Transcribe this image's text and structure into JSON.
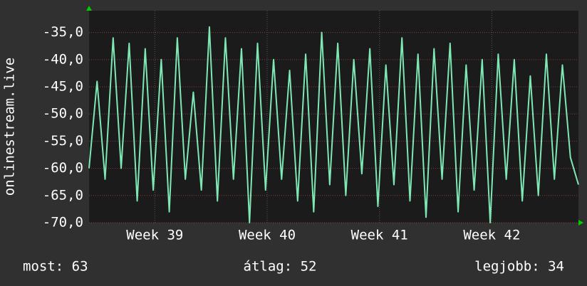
{
  "chart_data": {
    "type": "line",
    "ylabel": "onlinestream.live",
    "x": [
      0,
      0.5,
      1,
      1.5,
      2,
      2.5,
      3,
      3.5,
      4,
      4.5,
      5,
      5.5,
      6,
      6.5,
      7,
      7.5,
      8,
      8.5,
      9,
      9.5,
      10,
      10.5,
      11,
      11.5,
      12,
      12.5,
      13,
      13.5,
      14,
      14.5,
      15,
      15.5,
      16,
      16.5,
      17,
      17.5,
      18,
      18.5,
      19,
      19.5,
      20,
      20.5,
      21,
      21.5,
      22,
      22.5,
      23,
      23.5,
      24,
      24.5,
      25,
      25.5,
      26,
      26.5,
      27,
      27.5,
      28,
      28.5,
      29,
      29.5,
      30,
      30.5
    ],
    "series": [
      {
        "name": "onlinestream.live",
        "color": "#7ee8b4",
        "values": [
          -60,
          -44,
          -62,
          -36,
          -60,
          -37,
          -66,
          -38,
          -64,
          -40,
          -68,
          -36,
          -62,
          -46,
          -64,
          -34,
          -66,
          -36,
          -62,
          -38,
          -70,
          -37,
          -64,
          -40,
          -62,
          -42,
          -66,
          -39,
          -68,
          -35,
          -63,
          -37,
          -65,
          -40,
          -61,
          -38,
          -67,
          -41,
          -63,
          -36,
          -66,
          -39,
          -69,
          -38,
          -62,
          -37,
          -68,
          -41,
          -64,
          -40,
          -70,
          -39,
          -62,
          -40,
          -66,
          -43,
          -65,
          -39,
          -62,
          -41,
          -58,
          -63
        ]
      }
    ],
    "xlim": [
      0,
      30.5
    ],
    "xticks": [
      {
        "value": 4.1,
        "label": "Week 39"
      },
      {
        "value": 11.1,
        "label": "Week 40"
      },
      {
        "value": 18.1,
        "label": "Week 41"
      },
      {
        "value": 25.1,
        "label": "Week 42"
      }
    ],
    "ylim": [
      -70,
      -31
    ],
    "yticks": [
      {
        "value": -70,
        "label": "-70,0"
      },
      {
        "value": -65,
        "label": "-65,0"
      },
      {
        "value": -60,
        "label": "-60,0"
      },
      {
        "value": -55,
        "label": "-55,0"
      },
      {
        "value": -50,
        "label": "-50,0"
      },
      {
        "value": -45,
        "label": "-45,0"
      },
      {
        "value": -40,
        "label": "-40,0"
      },
      {
        "value": -35,
        "label": "-35,0"
      }
    ],
    "grid": true,
    "stats": [
      "most: 63",
      "átlag: 52",
      "legjobb: 34"
    ]
  }
}
